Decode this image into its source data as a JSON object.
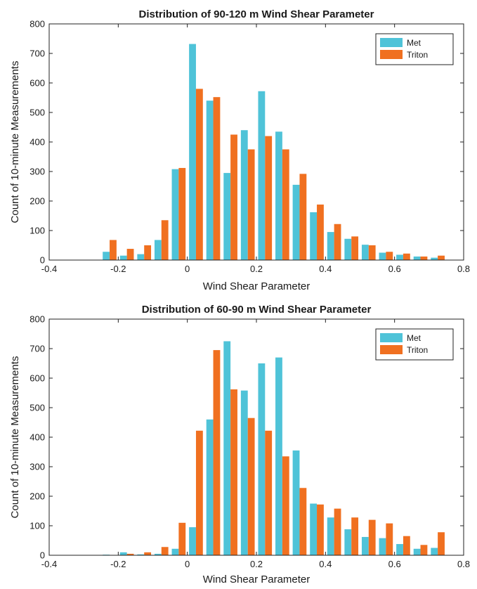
{
  "colors": {
    "met": "#4fc3d8",
    "triton": "#f07020",
    "axis": "#222222"
  },
  "chart_data": [
    {
      "type": "bar",
      "title": "Distribution of 90-120 m Wind Shear Parameter",
      "xlabel": "Wind Shear Parameter",
      "ylabel": "Count of 10-minute Measurements",
      "xlim": [
        -0.4,
        0.8
      ],
      "ylim": [
        0,
        800
      ],
      "xticks": [
        "-0.4",
        "-0.2",
        "0",
        "0.2",
        "0.4",
        "0.6",
        "0.8"
      ],
      "yticks": [
        "0",
        "100",
        "200",
        "300",
        "400",
        "500",
        "600",
        "700",
        "800"
      ],
      "legend_position": "top-right",
      "x": [
        -0.225,
        -0.175,
        -0.125,
        -0.075,
        -0.025,
        0.025,
        0.075,
        0.125,
        0.175,
        0.225,
        0.275,
        0.325,
        0.375,
        0.425,
        0.475,
        0.525,
        0.575,
        0.625,
        0.675,
        0.725
      ],
      "series": [
        {
          "name": "Met",
          "values": [
            28,
            15,
            20,
            68,
            308,
            732,
            540,
            295,
            440,
            572,
            435,
            255,
            162,
            95,
            72,
            52,
            25,
            18,
            12,
            8
          ]
        },
        {
          "name": "Triton",
          "values": [
            68,
            38,
            50,
            135,
            312,
            580,
            552,
            425,
            375,
            420,
            375,
            292,
            188,
            122,
            80,
            50,
            28,
            22,
            12,
            15
          ]
        }
      ]
    },
    {
      "type": "bar",
      "title": "Distribution of 60-90 m Wind Shear Parameter",
      "xlabel": "Wind Shear Parameter",
      "ylabel": "Count of 10-minute Measurements",
      "xlim": [
        -0.4,
        0.8
      ],
      "ylim": [
        0,
        800
      ],
      "xticks": [
        "-0.4",
        "-0.2",
        "0",
        "0.2",
        "0.4",
        "0.6",
        "0.8"
      ],
      "yticks": [
        "0",
        "100",
        "200",
        "300",
        "400",
        "500",
        "600",
        "700",
        "800"
      ],
      "legend_position": "top-right",
      "x": [
        -0.225,
        -0.175,
        -0.125,
        -0.075,
        -0.025,
        0.025,
        0.075,
        0.125,
        0.175,
        0.225,
        0.275,
        0.325,
        0.375,
        0.425,
        0.475,
        0.525,
        0.575,
        0.625,
        0.675,
        0.725
      ],
      "series": [
        {
          "name": "Met",
          "values": [
            2,
            10,
            3,
            5,
            22,
            95,
            460,
            725,
            558,
            650,
            670,
            355,
            175,
            128,
            88,
            62,
            58,
            38,
            22,
            25
          ]
        },
        {
          "name": "Triton",
          "values": [
            0,
            5,
            10,
            28,
            110,
            422,
            695,
            562,
            465,
            422,
            335,
            228,
            172,
            158,
            128,
            120,
            108,
            65,
            35,
            78
          ]
        }
      ]
    }
  ]
}
